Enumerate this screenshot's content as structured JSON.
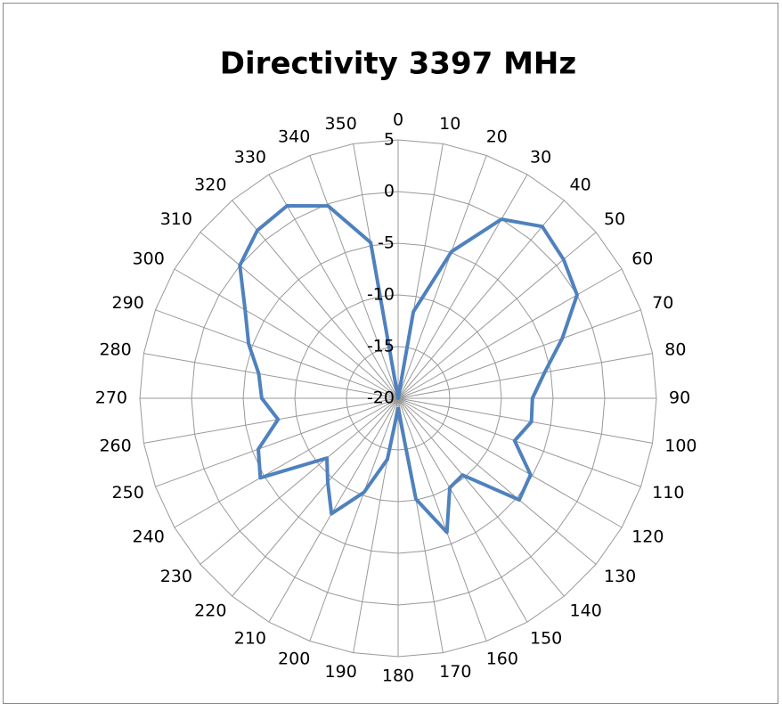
{
  "chart_data": {
    "type": "radar",
    "title": "Directivity 3397 MHz",
    "categories": [
      "0",
      "10",
      "20",
      "30",
      "40",
      "50",
      "60",
      "70",
      "80",
      "90",
      "100",
      "110",
      "120",
      "130",
      "140",
      "150",
      "160",
      "170",
      "180",
      "190",
      "200",
      "210",
      "220",
      "230",
      "240",
      "250",
      "260",
      "270",
      "280",
      "290",
      "300",
      "310",
      "320",
      "330",
      "340",
      "350"
    ],
    "series": [
      {
        "name": "Directivity",
        "color": "#4f81bd",
        "values": [
          -20,
          -11.5,
          -4.9,
          0,
          1.7,
          0.9,
          0,
          -3.1,
          -5.6,
          -7,
          -6.9,
          -8,
          -5.2,
          -4.7,
          -10.3,
          -10,
          -6.2,
          -10.1,
          -19,
          -14,
          -10.3,
          -7.1,
          -9.4,
          -11,
          -4.6,
          -5.6,
          -8.2,
          -6.8,
          -6.3,
          -4.6,
          -2.9,
          0,
          1.2,
          1.5,
          -0.2,
          -4.7
        ]
      }
    ],
    "ylim": [
      -20,
      5
    ],
    "yticks": [
      -20,
      -15,
      -10,
      -5,
      0,
      5
    ],
    "grid": true
  }
}
